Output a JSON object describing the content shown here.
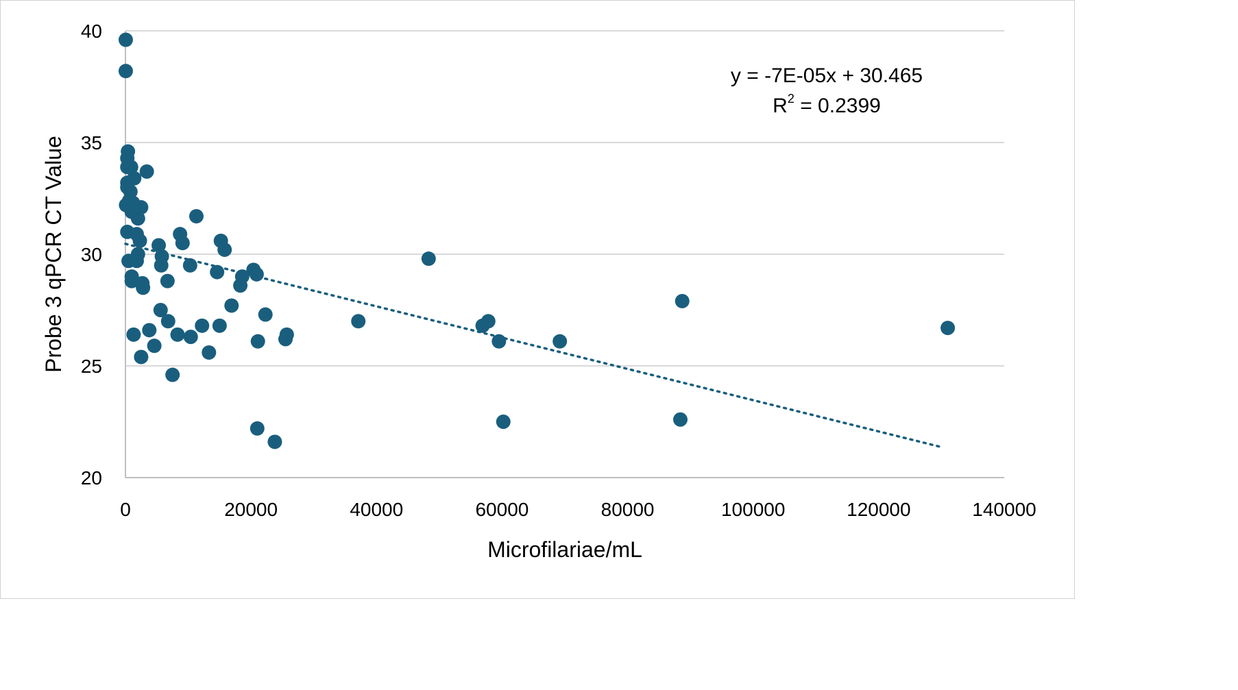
{
  "chart_data": {
    "type": "scatter",
    "xlabel": "Microfilariae/mL",
    "ylabel": "Probe 3 qPCR CT Value",
    "xlim": [
      0,
      140000
    ],
    "ylim": [
      20,
      40
    ],
    "x_ticks": [
      0,
      20000,
      40000,
      60000,
      80000,
      100000,
      120000,
      140000
    ],
    "y_ticks": [
      20,
      25,
      30,
      35,
      40
    ],
    "x_tick_labels": [
      "0",
      "20000",
      "40000",
      "60000",
      "80000",
      "100000",
      "120000",
      "140000"
    ],
    "y_tick_labels": [
      "20",
      "25",
      "30",
      "35",
      "40"
    ],
    "grid": "horizontal",
    "marker_color": "#1a5e7e",
    "trendline": {
      "type": "linear",
      "slope": -7e-05,
      "intercept": 30.465,
      "x_range": [
        0,
        130000
      ],
      "style": "dotted",
      "color": "#1a5e7e",
      "equation_text": "y = -7E-05x + 30.465",
      "r2_label": "R",
      "r2_exponent": "2",
      "r2_value_text": " = 0.2399"
    },
    "points": [
      [
        50,
        39.6
      ],
      [
        50,
        38.2
      ],
      [
        400,
        34.6
      ],
      [
        300,
        34.3
      ],
      [
        300,
        33.9
      ],
      [
        900,
        33.9
      ],
      [
        300,
        33.2
      ],
      [
        300,
        33.0
      ],
      [
        800,
        32.8
      ],
      [
        1400,
        33.4
      ],
      [
        3400,
        33.7
      ],
      [
        100,
        32.2
      ],
      [
        600,
        32.4
      ],
      [
        1200,
        32.3
      ],
      [
        2500,
        32.1
      ],
      [
        1000,
        31.9
      ],
      [
        2000,
        31.6
      ],
      [
        300,
        31.0
      ],
      [
        1800,
        30.9
      ],
      [
        2300,
        30.6
      ],
      [
        2000,
        30.0
      ],
      [
        500,
        29.7
      ],
      [
        1800,
        29.7
      ],
      [
        1000,
        29.0
      ],
      [
        1000,
        28.8
      ],
      [
        2700,
        28.7
      ],
      [
        2800,
        28.5
      ],
      [
        1300,
        26.4
      ],
      [
        2500,
        25.4
      ],
      [
        5300,
        30.4
      ],
      [
        5800,
        29.9
      ],
      [
        5700,
        29.5
      ],
      [
        6700,
        28.8
      ],
      [
        5600,
        27.5
      ],
      [
        6800,
        27.0
      ],
      [
        3800,
        26.6
      ],
      [
        8300,
        26.4
      ],
      [
        4600,
        25.9
      ],
      [
        7500,
        24.6
      ],
      [
        8700,
        30.9
      ],
      [
        9100,
        30.5
      ],
      [
        10300,
        29.5
      ],
      [
        11300,
        31.7
      ],
      [
        10400,
        26.3
      ],
      [
        12200,
        26.8
      ],
      [
        13300,
        25.6
      ],
      [
        15200,
        30.6
      ],
      [
        15800,
        30.2
      ],
      [
        14600,
        29.2
      ],
      [
        15000,
        26.8
      ],
      [
        16900,
        27.7
      ],
      [
        18600,
        29.0
      ],
      [
        18300,
        28.6
      ],
      [
        20400,
        29.3
      ],
      [
        20900,
        29.1
      ],
      [
        21100,
        26.1
      ],
      [
        22300,
        27.3
      ],
      [
        25500,
        26.2
      ],
      [
        25700,
        26.4
      ],
      [
        21000,
        22.2
      ],
      [
        23800,
        21.6
      ],
      [
        37100,
        27.0
      ],
      [
        48300,
        29.8
      ],
      [
        56900,
        26.8
      ],
      [
        57800,
        27.0
      ],
      [
        59500,
        26.1
      ],
      [
        60200,
        22.5
      ],
      [
        69200,
        26.1
      ],
      [
        88400,
        22.6
      ],
      [
        88700,
        27.9
      ],
      [
        131000,
        26.7
      ]
    ]
  }
}
